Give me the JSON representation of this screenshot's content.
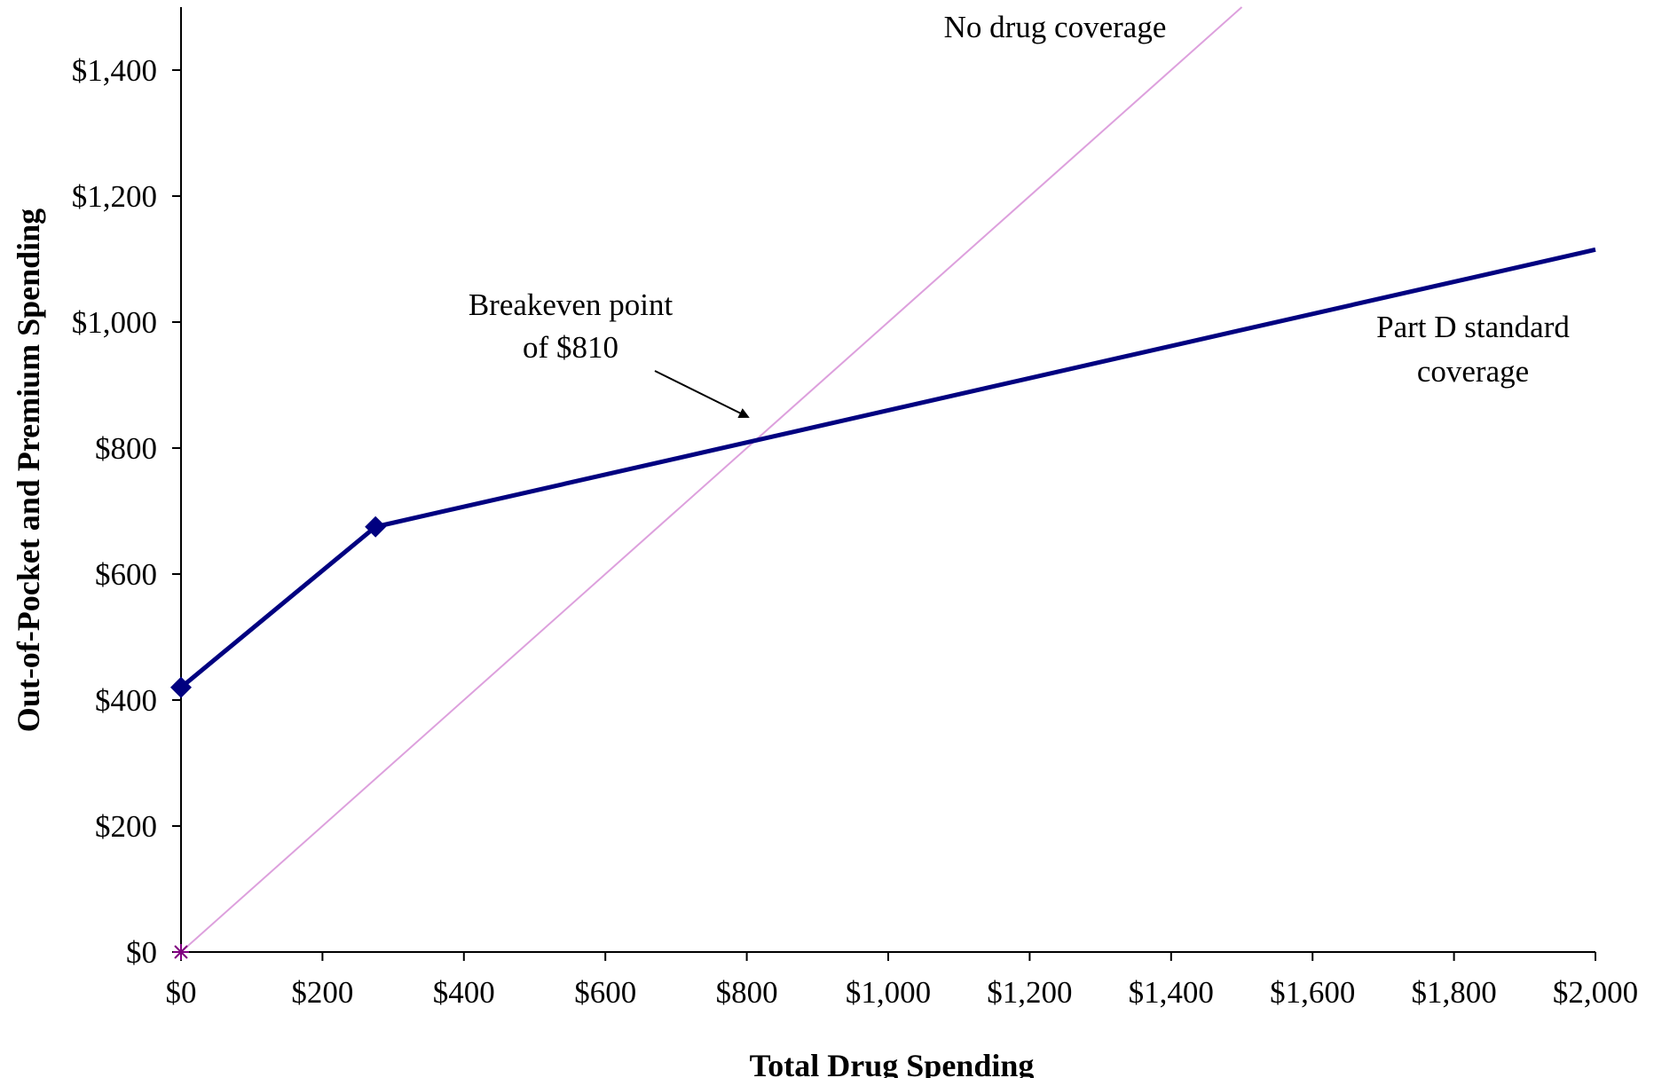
{
  "chart_data": {
    "type": "line",
    "title": "",
    "xlabel": "Total Drug Spending",
    "ylabel": "Out-of-Pocket and Premium Spending",
    "xlim": [
      0,
      2000
    ],
    "ylim": [
      0,
      1500
    ],
    "x_ticks": [
      0,
      200,
      400,
      600,
      800,
      1000,
      1200,
      1400,
      1600,
      1800,
      2000
    ],
    "x_tick_labels": [
      "$0",
      "$200",
      "$400",
      "$600",
      "$800",
      "$1,000",
      "$1,200",
      "$1,400",
      "$1,600",
      "$1,800",
      "$2,000"
    ],
    "y_ticks": [
      0,
      200,
      400,
      600,
      800,
      1000,
      1200,
      1400
    ],
    "y_tick_labels": [
      "$0",
      "$200",
      "$400",
      "$600",
      "$800",
      "$1,000",
      "$1,200",
      "$1,400"
    ],
    "grid": false,
    "series": [
      {
        "name": "No drug coverage",
        "color": "#dda0dd",
        "x": [
          0,
          1500
        ],
        "y": [
          0,
          1500
        ]
      },
      {
        "name": "Part D standard coverage",
        "color": "#000080",
        "x": [
          0,
          275,
          2000
        ],
        "y": [
          420,
          675,
          1115
        ],
        "markers": [
          0,
          1
        ]
      }
    ],
    "series_labels": {
      "no_coverage": "No drug coverage",
      "part_d_line1": "Part D standard",
      "part_d_line2": "coverage"
    },
    "annotations": {
      "breakeven_line1": "Breakeven point",
      "breakeven_line2": "of $810",
      "breakeven_x": 810,
      "breakeven_y": 810
    }
  }
}
